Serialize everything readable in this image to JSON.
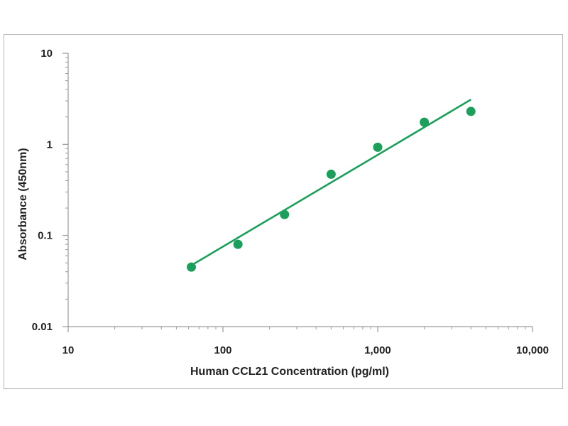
{
  "chart_data": {
    "type": "scatter",
    "title": "",
    "xlabel": "Human CCL21 Concentration (pg/ml)",
    "ylabel": "Absorbance (450nm)",
    "x_scale": "log",
    "y_scale": "log",
    "xlim": [
      10,
      10000
    ],
    "ylim": [
      0.01,
      10
    ],
    "x_ticks": [
      {
        "value": 10,
        "label": "10"
      },
      {
        "value": 100,
        "label": "100"
      },
      {
        "value": 1000,
        "label": "1,000"
      },
      {
        "value": 10000,
        "label": "10,000"
      }
    ],
    "y_ticks": [
      {
        "value": 10,
        "label": "10"
      },
      {
        "value": 1,
        "label": "1"
      },
      {
        "value": 0.1,
        "label": "0.1"
      },
      {
        "value": 0.01,
        "label": "0.01"
      }
    ],
    "grid": false,
    "legend": "none",
    "series": [
      {
        "x": [
          62.5,
          125,
          250,
          500,
          1000,
          2000,
          4000
        ],
        "y": [
          0.045,
          0.08,
          0.17,
          0.47,
          0.93,
          1.75,
          2.3
        ],
        "marker_color": "#1aa05a"
      }
    ],
    "fit_line": {
      "x": [
        62.5,
        4000
      ],
      "y": [
        0.047,
        3.1
      ],
      "color": "#1aa05a"
    }
  }
}
